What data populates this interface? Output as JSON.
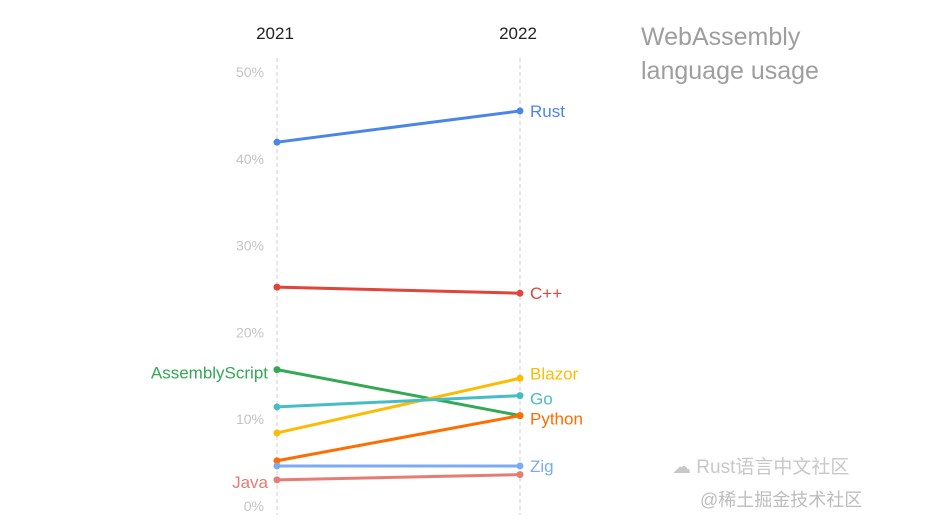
{
  "chart_data": {
    "type": "line",
    "title": "WebAssembly language usage",
    "categories": [
      "2021",
      "2022"
    ],
    "ylim": [
      0,
      50
    ],
    "yticks": [
      "0%",
      "10%",
      "20%",
      "30%",
      "40%",
      "50%"
    ],
    "grid": false,
    "series": [
      {
        "name": "Rust",
        "values": [
          41.8,
          45.4
        ],
        "color": "#4a86e8",
        "label_side": "right"
      },
      {
        "name": "C++",
        "values": [
          25.1,
          24.4
        ],
        "color": "#e0443a",
        "label_side": "right"
      },
      {
        "name": "AssemblyScript",
        "values": [
          15.6,
          10.3
        ],
        "color": "#34a853",
        "label_side": "left"
      },
      {
        "name": "Blazor",
        "values": [
          8.3,
          14.6
        ],
        "color": "#fbbc04",
        "label_side": "right"
      },
      {
        "name": "Go",
        "values": [
          11.3,
          12.6
        ],
        "color": "#46bdc6",
        "label_side": "right"
      },
      {
        "name": "Python",
        "values": [
          5.1,
          10.3
        ],
        "color": "#ff6d01",
        "label_side": "right"
      },
      {
        "name": "Zig",
        "values": [
          4.5,
          4.5
        ],
        "color": "#7baaf7",
        "label_side": "right"
      },
      {
        "name": "Java",
        "values": [
          2.9,
          3.5
        ],
        "color": "#e67c73",
        "label_side": "left"
      }
    ]
  },
  "watermark": {
    "text1": "Rust语言中文社区",
    "text2": "@稀土掘金技术社区"
  }
}
